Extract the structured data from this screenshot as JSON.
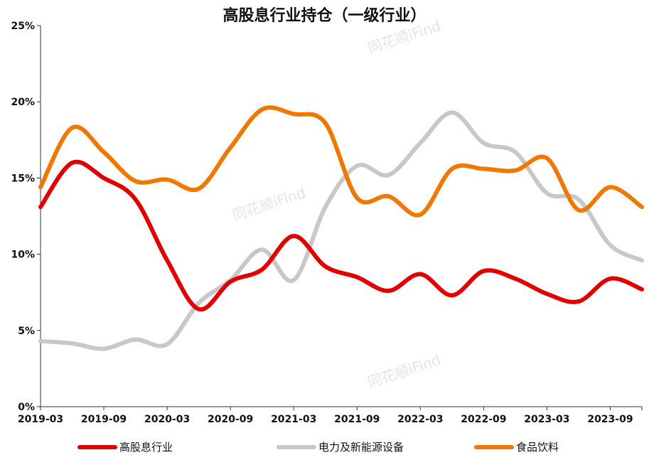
{
  "chart_data": {
    "type": "line",
    "title": "高股息行业持仓（一级行业）",
    "x_tick_labels": [
      "2019-03",
      "2019-09",
      "2020-03",
      "2020-09",
      "2021-03",
      "2021-09",
      "2022-03",
      "2022-09",
      "2023-03",
      "2023-09"
    ],
    "y_tick_labels": [
      "0%",
      "5%",
      "10%",
      "15%",
      "20%",
      "25%"
    ],
    "ylim": [
      0,
      25
    ],
    "grid": false,
    "legend_position": "bottom",
    "watermark": "同花顺iFind",
    "x": [
      "2019-03",
      "2019-06",
      "2019-09",
      "2019-12",
      "2020-03",
      "2020-06",
      "2020-09",
      "2020-12",
      "2021-03",
      "2021-06",
      "2021-09",
      "2021-12",
      "2022-03",
      "2022-06",
      "2022-09",
      "2022-12",
      "2023-03",
      "2023-06",
      "2023-09",
      "2023-12"
    ],
    "series": [
      {
        "name": "高股息行业",
        "color": "#e00000",
        "values": [
          13.1,
          16.0,
          15.0,
          13.6,
          9.6,
          6.4,
          8.2,
          9.0,
          11.2,
          9.2,
          8.5,
          7.6,
          8.7,
          7.3,
          8.9,
          8.4,
          7.4,
          6.9,
          8.4,
          7.7
        ]
      },
      {
        "name": "电力及新能源设备",
        "color": "#c8c8c8",
        "values": [
          4.3,
          4.15,
          3.8,
          4.4,
          4.1,
          6.8,
          8.3,
          10.3,
          8.3,
          13.1,
          15.8,
          15.2,
          17.3,
          19.3,
          17.3,
          16.7,
          14.0,
          13.6,
          10.6,
          9.6
        ]
      },
      {
        "name": "食品饮料",
        "color": "#f07800",
        "values": [
          14.4,
          18.3,
          16.7,
          14.8,
          14.9,
          14.3,
          17.0,
          19.5,
          19.2,
          18.6,
          13.7,
          13.8,
          12.6,
          15.6,
          15.6,
          15.5,
          16.3,
          12.9,
          14.4,
          13.1
        ]
      }
    ]
  }
}
